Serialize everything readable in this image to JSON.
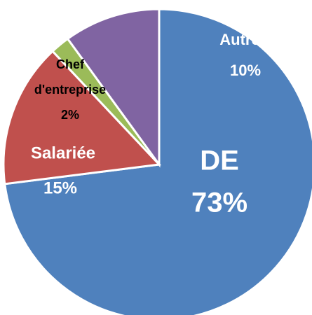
{
  "chart_data": {
    "type": "pie",
    "categories": [
      "DE",
      "Salariée",
      "Chef d'entreprise",
      "Autre"
    ],
    "values": [
      73,
      15,
      2,
      10
    ],
    "value_labels": [
      "73%",
      "15%",
      "2%",
      "10%"
    ],
    "colors": [
      "#4f81bd",
      "#c0504d",
      "#9bbb59",
      "#8064a2"
    ]
  }
}
